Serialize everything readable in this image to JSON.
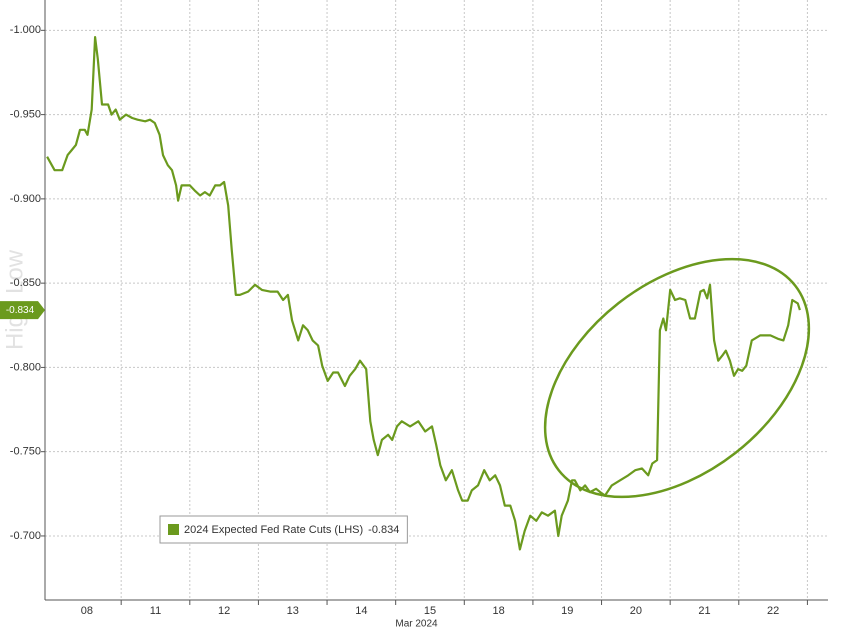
{
  "chart_data": {
    "type": "line",
    "watermark": "High Low",
    "xlabel": "Mar 2024",
    "xlim": [
      -0.61,
      10.8
    ],
    "xticks": [
      {
        "value": 0,
        "label": "08"
      },
      {
        "value": 1,
        "label": "11"
      },
      {
        "value": 2,
        "label": "12"
      },
      {
        "value": 3,
        "label": "13"
      },
      {
        "value": 4,
        "label": "14"
      },
      {
        "value": 5,
        "label": "15"
      },
      {
        "value": 6,
        "label": "18"
      },
      {
        "value": 7,
        "label": "19"
      },
      {
        "value": 8,
        "label": "20"
      },
      {
        "value": 9,
        "label": "21"
      },
      {
        "value": 10,
        "label": "22"
      }
    ],
    "ylim": [
      -0.662,
      -1.018
    ],
    "yticks": [
      {
        "value": -1,
        "label": "-1.000"
      },
      {
        "value": -0.95,
        "label": "-0.950"
      },
      {
        "value": -0.9,
        "label": "-0.900"
      },
      {
        "value": -0.85,
        "label": "-0.850"
      },
      {
        "value": -0.8,
        "label": "-0.800"
      },
      {
        "value": -0.75,
        "label": "-0.750"
      },
      {
        "value": -0.7,
        "label": "-0.700"
      }
    ],
    "grid": true,
    "legend": "lower-left",
    "x": [
      -0.58,
      -0.47,
      -0.36,
      -0.28,
      -0.22,
      -0.16,
      -0.1,
      -0.03,
      0.01,
      0.07,
      0.12,
      0.16,
      0.22,
      0.31,
      0.36,
      0.42,
      0.48,
      0.57,
      0.66,
      0.74,
      0.85,
      0.92,
      0.99,
      1.06,
      1.11,
      1.18,
      1.24,
      1.3,
      1.33,
      1.38,
      1.5,
      1.57,
      1.65,
      1.72,
      1.79,
      1.87,
      1.94,
      2.0,
      2.06,
      2.11,
      2.17,
      2.23,
      2.35,
      2.45,
      2.55,
      2.67,
      2.78,
      2.86,
      2.93,
      2.99,
      3.08,
      3.15,
      3.22,
      3.29,
      3.37,
      3.43,
      3.51,
      3.59,
      3.66,
      3.76,
      3.83,
      3.91,
      3.98,
      4.07,
      4.13,
      4.18,
      4.24,
      4.3,
      4.39,
      4.45,
      4.52,
      4.59,
      4.71,
      4.83,
      4.93,
      5.03,
      5.09,
      5.15,
      5.23,
      5.32,
      5.41,
      5.47,
      5.55,
      5.61,
      5.7,
      5.79,
      5.87,
      5.95,
      6.02,
      6.09,
      6.17,
      6.24,
      6.31,
      6.38,
      6.46,
      6.55,
      6.63,
      6.72,
      6.82,
      6.87,
      6.92,
      7.01,
      7.07,
      7.11,
      7.19,
      7.26,
      7.33,
      7.42,
      7.48,
      7.55,
      7.65,
      7.77,
      7.89,
      7.99,
      8.09,
      8.18,
      8.24,
      8.31,
      8.35,
      8.4,
      8.44,
      8.5,
      8.57,
      8.64,
      8.72,
      8.79,
      8.86,
      8.94,
      8.99,
      9.04,
      9.08,
      9.14,
      9.2,
      9.26,
      9.31,
      9.37,
      9.43,
      9.49,
      9.55,
      9.61,
      9.69,
      9.81,
      9.96,
      10.07,
      10.15,
      10.22,
      10.28,
      10.36,
      10.39
    ],
    "series": [
      {
        "name": "2024 Expected Fed Rate Cuts (LHS)",
        "color": "#6b9a1e",
        "values": [
          -0.925,
          -0.917,
          -0.917,
          -0.926,
          -0.929,
          -0.932,
          -0.941,
          -0.941,
          -0.938,
          -0.953,
          -0.996,
          -0.983,
          -0.956,
          -0.956,
          -0.95,
          -0.953,
          -0.947,
          -0.95,
          -0.948,
          -0.947,
          -0.946,
          -0.947,
          -0.945,
          -0.938,
          -0.926,
          -0.92,
          -0.917,
          -0.908,
          -0.899,
          -0.908,
          -0.908,
          -0.905,
          -0.902,
          -0.904,
          -0.902,
          -0.908,
          -0.908,
          -0.91,
          -0.896,
          -0.87,
          -0.843,
          -0.843,
          -0.845,
          -0.849,
          -0.846,
          -0.845,
          -0.845,
          -0.84,
          -0.843,
          -0.828,
          -0.816,
          -0.825,
          -0.822,
          -0.816,
          -0.813,
          -0.801,
          -0.792,
          -0.797,
          -0.797,
          -0.789,
          -0.795,
          -0.799,
          -0.804,
          -0.799,
          -0.768,
          -0.757,
          -0.748,
          -0.757,
          -0.76,
          -0.757,
          -0.765,
          -0.768,
          -0.765,
          -0.768,
          -0.762,
          -0.765,
          -0.754,
          -0.742,
          -0.733,
          -0.739,
          -0.727,
          -0.721,
          -0.721,
          -0.727,
          -0.73,
          -0.739,
          -0.733,
          -0.736,
          -0.73,
          -0.718,
          -0.718,
          -0.709,
          -0.692,
          -0.703,
          -0.712,
          -0.709,
          -0.714,
          -0.712,
          -0.715,
          -0.7,
          -0.712,
          -0.721,
          -0.733,
          -0.733,
          -0.727,
          -0.73,
          -0.726,
          -0.728,
          -0.726,
          -0.724,
          -0.73,
          -0.733,
          -0.736,
          -0.739,
          -0.74,
          -0.736,
          -0.743,
          -0.745,
          -0.822,
          -0.829,
          -0.822,
          -0.846,
          -0.84,
          -0.841,
          -0.84,
          -0.829,
          -0.829,
          -0.845,
          -0.846,
          -0.841,
          -0.849,
          -0.816,
          -0.804,
          -0.807,
          -0.81,
          -0.804,
          -0.795,
          -0.799,
          -0.798,
          -0.801,
          -0.816,
          -0.819,
          -0.819,
          -0.817,
          -0.816,
          -0.825,
          -0.84,
          -0.838,
          -0.834
        ]
      }
    ]
  }
}
